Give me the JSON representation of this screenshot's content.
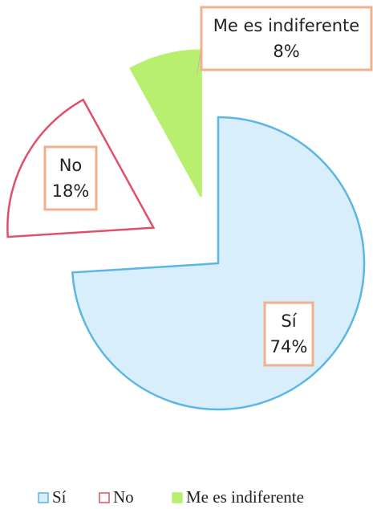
{
  "chart_data": {
    "type": "pie",
    "categories": [
      "Sí",
      "No",
      "Me es indiferente"
    ],
    "values": [
      74,
      18,
      8
    ],
    "value_labels": [
      "74%",
      "18%",
      "8%"
    ],
    "colors": [
      "#d8effb",
      "#ffffff",
      "#b8ef6e"
    ],
    "edge_colors": [
      "#5ab6e6",
      "#e0506a",
      "#b8ef6e"
    ],
    "legend": "bottom"
  }
}
